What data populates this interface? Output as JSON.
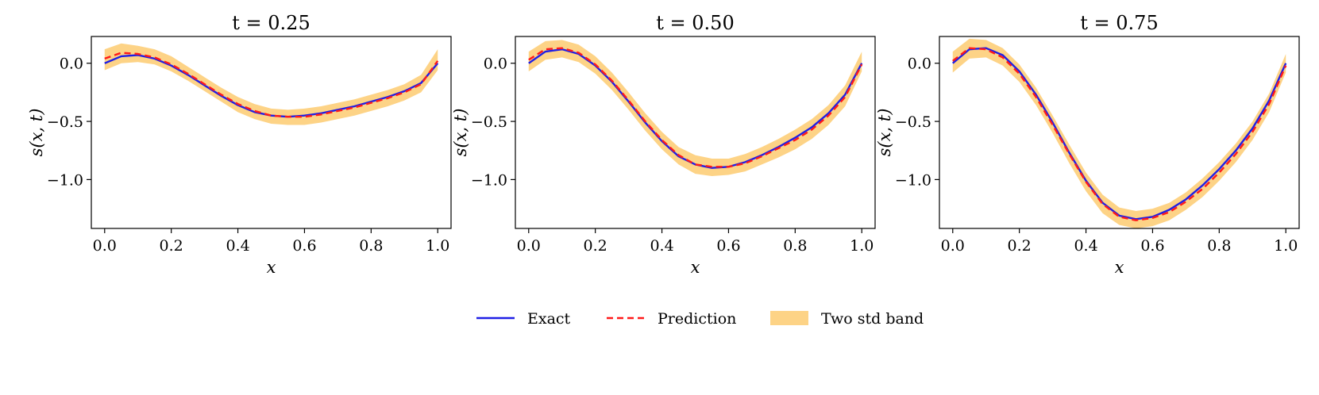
{
  "chart_data": [
    {
      "type": "line",
      "title": "t = 0.25",
      "xlabel": "x",
      "ylabel": "s(x, t)",
      "xlim": [
        -0.04,
        1.04
      ],
      "ylim": [
        -1.42,
        0.23
      ],
      "xticks": [
        0.0,
        0.2,
        0.4,
        0.6,
        0.8,
        1.0
      ],
      "xtick_labels": [
        "0.0",
        "0.2",
        "0.4",
        "0.6",
        "0.8",
        "1.0"
      ],
      "yticks": [
        0.0,
        -0.5,
        -1.0
      ],
      "ytick_labels": [
        "0.0",
        "−0.5",
        "−1.0"
      ],
      "x": [
        0.0,
        0.05,
        0.1,
        0.15,
        0.2,
        0.25,
        0.3,
        0.35,
        0.4,
        0.45,
        0.5,
        0.55,
        0.6,
        0.65,
        0.7,
        0.75,
        0.8,
        0.85,
        0.9,
        0.95,
        1.0
      ],
      "series": [
        {
          "name": "Exact",
          "values": [
            0.0,
            0.06,
            0.07,
            0.04,
            -0.02,
            -0.1,
            -0.19,
            -0.28,
            -0.36,
            -0.42,
            -0.45,
            -0.46,
            -0.45,
            -0.43,
            -0.4,
            -0.37,
            -0.33,
            -0.29,
            -0.24,
            -0.17,
            0.0
          ]
        },
        {
          "name": "Prediction",
          "values": [
            0.04,
            0.09,
            0.08,
            0.05,
            -0.01,
            -0.09,
            -0.18,
            -0.27,
            -0.35,
            -0.41,
            -0.45,
            -0.46,
            -0.46,
            -0.44,
            -0.41,
            -0.38,
            -0.34,
            -0.3,
            -0.25,
            -0.18,
            0.02
          ]
        }
      ],
      "band": {
        "name": "Two std band",
        "lower": [
          -0.06,
          0.0,
          0.01,
          -0.01,
          -0.07,
          -0.15,
          -0.24,
          -0.33,
          -0.42,
          -0.48,
          -0.52,
          -0.53,
          -0.53,
          -0.51,
          -0.48,
          -0.45,
          -0.41,
          -0.37,
          -0.32,
          -0.25,
          -0.06
        ],
        "upper": [
          0.12,
          0.17,
          0.15,
          0.12,
          0.06,
          -0.03,
          -0.12,
          -0.21,
          -0.29,
          -0.35,
          -0.39,
          -0.4,
          -0.39,
          -0.37,
          -0.34,
          -0.31,
          -0.27,
          -0.23,
          -0.18,
          -0.1,
          0.12
        ]
      }
    },
    {
      "type": "line",
      "title": "t = 0.50",
      "xlabel": "x",
      "ylabel": "s(x, t)",
      "xlim": [
        -0.04,
        1.04
      ],
      "ylim": [
        -1.42,
        0.23
      ],
      "xticks": [
        0.0,
        0.2,
        0.4,
        0.6,
        0.8,
        1.0
      ],
      "xtick_labels": [
        "0.0",
        "0.2",
        "0.4",
        "0.6",
        "0.8",
        "1.0"
      ],
      "yticks": [
        0.0,
        -0.5,
        -1.0
      ],
      "ytick_labels": [
        "0.0",
        "−0.5",
        "−1.0"
      ],
      "x": [
        0.0,
        0.05,
        0.1,
        0.15,
        0.2,
        0.25,
        0.3,
        0.35,
        0.4,
        0.45,
        0.5,
        0.55,
        0.6,
        0.65,
        0.7,
        0.75,
        0.8,
        0.85,
        0.9,
        0.95,
        1.0
      ],
      "series": [
        {
          "name": "Exact",
          "values": [
            0.0,
            0.1,
            0.12,
            0.08,
            -0.02,
            -0.16,
            -0.33,
            -0.51,
            -0.67,
            -0.8,
            -0.87,
            -0.9,
            -0.89,
            -0.85,
            -0.79,
            -0.72,
            -0.64,
            -0.55,
            -0.43,
            -0.27,
            0.0
          ]
        },
        {
          "name": "Prediction",
          "values": [
            0.03,
            0.12,
            0.13,
            0.09,
            -0.01,
            -0.15,
            -0.32,
            -0.5,
            -0.66,
            -0.79,
            -0.87,
            -0.89,
            -0.89,
            -0.86,
            -0.8,
            -0.73,
            -0.66,
            -0.57,
            -0.45,
            -0.29,
            -0.01
          ]
        }
      ],
      "band": {
        "name": "Two std band",
        "lower": [
          -0.07,
          0.03,
          0.05,
          0.01,
          -0.09,
          -0.23,
          -0.4,
          -0.58,
          -0.74,
          -0.87,
          -0.95,
          -0.97,
          -0.96,
          -0.93,
          -0.87,
          -0.81,
          -0.74,
          -0.65,
          -0.53,
          -0.37,
          -0.07
        ]
      },
      "band_upper_note": "",
      "band_upper": [
        0.1,
        0.19,
        0.2,
        0.16,
        0.06,
        -0.08,
        -0.25,
        -0.43,
        -0.59,
        -0.72,
        -0.79,
        -0.82,
        -0.82,
        -0.78,
        -0.72,
        -0.65,
        -0.57,
        -0.48,
        -0.36,
        -0.19,
        0.1
      ]
    },
    {
      "type": "line",
      "title": "t = 0.75",
      "xlabel": "x",
      "ylabel": "s(x, t)",
      "xlim": [
        -0.04,
        1.04
      ],
      "ylim": [
        -1.42,
        0.23
      ],
      "xticks": [
        0.0,
        0.2,
        0.4,
        0.6,
        0.8,
        1.0
      ],
      "xtick_labels": [
        "0.0",
        "0.2",
        "0.4",
        "0.6",
        "0.8",
        "1.0"
      ],
      "yticks": [
        0.0,
        -0.5,
        -1.0
      ],
      "ytick_labels": [
        "0.0",
        "−0.5",
        "−1.0"
      ],
      "x": [
        0.0,
        0.05,
        0.1,
        0.15,
        0.2,
        0.25,
        0.3,
        0.35,
        0.4,
        0.45,
        0.5,
        0.55,
        0.6,
        0.65,
        0.7,
        0.75,
        0.8,
        0.85,
        0.9,
        0.95,
        1.0
      ],
      "series": [
        {
          "name": "Exact",
          "values": [
            0.0,
            0.12,
            0.13,
            0.07,
            -0.07,
            -0.27,
            -0.51,
            -0.77,
            -1.01,
            -1.2,
            -1.31,
            -1.34,
            -1.32,
            -1.26,
            -1.17,
            -1.05,
            -0.91,
            -0.75,
            -0.56,
            -0.32,
            0.0
          ]
        },
        {
          "name": "Prediction",
          "values": [
            0.02,
            0.13,
            0.12,
            0.05,
            -0.09,
            -0.29,
            -0.53,
            -0.78,
            -1.02,
            -1.21,
            -1.32,
            -1.35,
            -1.33,
            -1.28,
            -1.19,
            -1.08,
            -0.94,
            -0.78,
            -0.59,
            -0.35,
            -0.02
          ]
        }
      ],
      "band": {
        "name": "Two std band",
        "lower": [
          -0.08,
          0.04,
          0.05,
          -0.02,
          -0.16,
          -0.36,
          -0.6,
          -0.86,
          -1.1,
          -1.29,
          -1.39,
          -1.42,
          -1.4,
          -1.35,
          -1.26,
          -1.15,
          -1.01,
          -0.85,
          -0.66,
          -0.42,
          -0.08
        ]
      },
      "band_upper_note": "",
      "band_upper": [
        0.1,
        0.21,
        0.2,
        0.13,
        -0.01,
        -0.21,
        -0.45,
        -0.7,
        -0.94,
        -1.13,
        -1.24,
        -1.27,
        -1.25,
        -1.2,
        -1.11,
        -0.99,
        -0.85,
        -0.69,
        -0.5,
        -0.26,
        0.08
      ]
    }
  ],
  "legend": {
    "placement": "bottom-center",
    "items": [
      {
        "label": "Exact",
        "color": "#1f1fe6",
        "style": "solid"
      },
      {
        "label": "Prediction",
        "color": "#ff1a1a",
        "style": "dashed"
      },
      {
        "label": "Two std band",
        "color": "#fdd386",
        "style": "patch"
      }
    ]
  },
  "colors": {
    "exact": "#1f1fe6",
    "prediction": "#ff1a1a",
    "band": "#fdd386"
  }
}
